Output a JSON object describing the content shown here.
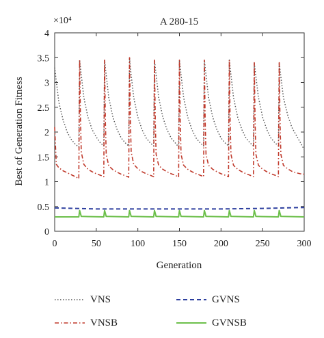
{
  "chart_data": {
    "type": "line",
    "title": "A 280-15",
    "xlabel": "Generation",
    "ylabel": "Best of Generation Fitness",
    "y_multiplier_label": "×10⁴",
    "xlim": [
      0,
      300
    ],
    "ylim": [
      0,
      4
    ],
    "x_ticks": [
      "0",
      "50",
      "100",
      "150",
      "200",
      "250",
      "300"
    ],
    "y_ticks": [
      "0",
      "0.5",
      "1",
      "1.5",
      "2",
      "2.5",
      "3",
      "3.5",
      "4"
    ],
    "grid": false,
    "legend_position": "bottom",
    "series": [
      {
        "name": "VNS",
        "color": "#555555",
        "style": "dotted",
        "x": [
          0,
          5,
          10,
          15,
          20,
          25,
          29,
          30,
          31,
          35,
          40,
          45,
          50,
          55,
          59,
          60,
          61,
          65,
          70,
          75,
          80,
          85,
          89,
          90,
          91,
          95,
          100,
          105,
          110,
          115,
          119,
          120,
          121,
          125,
          130,
          135,
          140,
          145,
          149,
          150,
          151,
          155,
          160,
          165,
          170,
          175,
          179,
          180,
          181,
          185,
          190,
          195,
          200,
          205,
          209,
          210,
          211,
          215,
          220,
          225,
          230,
          235,
          239,
          240,
          241,
          245,
          250,
          255,
          260,
          265,
          269,
          270,
          271,
          275,
          280,
          285,
          290,
          295,
          300
        ],
        "y": [
          3.3,
          2.6,
          2.25,
          2.0,
          1.85,
          1.75,
          1.7,
          3.45,
          3.3,
          2.7,
          2.3,
          2.05,
          1.9,
          1.78,
          1.72,
          3.45,
          3.3,
          2.7,
          2.3,
          2.05,
          1.88,
          1.78,
          1.72,
          3.5,
          3.3,
          2.7,
          2.3,
          2.05,
          1.88,
          1.78,
          1.72,
          3.45,
          3.3,
          2.7,
          2.3,
          2.05,
          1.88,
          1.78,
          1.7,
          3.45,
          3.3,
          2.7,
          2.3,
          2.05,
          1.88,
          1.78,
          1.72,
          3.45,
          3.3,
          2.7,
          2.3,
          2.05,
          1.88,
          1.78,
          1.72,
          3.45,
          3.3,
          2.7,
          2.3,
          2.05,
          1.88,
          1.78,
          1.72,
          3.4,
          3.25,
          2.7,
          2.3,
          2.05,
          1.88,
          1.78,
          1.72,
          3.4,
          3.25,
          2.7,
          2.35,
          2.1,
          1.95,
          1.8,
          1.65
        ]
      },
      {
        "name": "VNSB",
        "color": "#c0392b",
        "style": "dashdot",
        "x": [
          0,
          2,
          5,
          10,
          15,
          20,
          25,
          29,
          30,
          31,
          32,
          35,
          40,
          45,
          50,
          55,
          59,
          60,
          61,
          62,
          65,
          70,
          75,
          80,
          85,
          89,
          90,
          91,
          92,
          95,
          100,
          105,
          110,
          115,
          119,
          120,
          121,
          122,
          125,
          130,
          135,
          140,
          145,
          149,
          150,
          151,
          152,
          155,
          160,
          165,
          170,
          175,
          179,
          180,
          181,
          182,
          185,
          190,
          195,
          200,
          205,
          209,
          210,
          211,
          212,
          215,
          220,
          225,
          230,
          235,
          239,
          240,
          241,
          242,
          245,
          250,
          255,
          260,
          265,
          269,
          270,
          271,
          272,
          275,
          280,
          285,
          290,
          295,
          300
        ],
        "y": [
          2.1,
          1.35,
          1.28,
          1.22,
          1.18,
          1.14,
          1.1,
          1.06,
          3.45,
          2.3,
          1.6,
          1.35,
          1.25,
          1.2,
          1.16,
          1.13,
          1.1,
          3.45,
          2.2,
          1.55,
          1.32,
          1.24,
          1.19,
          1.15,
          1.12,
          1.09,
          3.5,
          2.3,
          1.6,
          1.35,
          1.26,
          1.2,
          1.16,
          1.13,
          1.1,
          3.45,
          2.2,
          1.55,
          1.33,
          1.25,
          1.2,
          1.16,
          1.13,
          1.09,
          3.45,
          2.2,
          1.55,
          1.33,
          1.25,
          1.2,
          1.16,
          1.13,
          1.1,
          3.45,
          2.2,
          1.55,
          1.33,
          1.25,
          1.2,
          1.16,
          1.13,
          1.1,
          3.45,
          2.2,
          1.55,
          1.33,
          1.25,
          1.2,
          1.16,
          1.13,
          1.1,
          3.4,
          2.2,
          1.55,
          1.33,
          1.25,
          1.2,
          1.16,
          1.13,
          1.1,
          3.4,
          2.2,
          1.55,
          1.33,
          1.26,
          1.21,
          1.18,
          1.16,
          1.15
        ]
      },
      {
        "name": "GVNS",
        "color": "#2c3e9e",
        "style": "dashed",
        "x": [
          0,
          50,
          100,
          150,
          200,
          250,
          300
        ],
        "y": [
          0.47,
          0.45,
          0.45,
          0.45,
          0.45,
          0.46,
          0.48
        ]
      },
      {
        "name": "GVNSB",
        "color": "#6cbf4a",
        "style": "solid",
        "x": [
          0,
          29,
          30,
          32,
          59,
          60,
          62,
          89,
          90,
          92,
          119,
          120,
          122,
          149,
          150,
          152,
          179,
          180,
          182,
          209,
          210,
          212,
          239,
          240,
          242,
          269,
          270,
          272,
          300
        ],
        "y": [
          0.29,
          0.29,
          0.42,
          0.3,
          0.29,
          0.42,
          0.3,
          0.29,
          0.42,
          0.3,
          0.29,
          0.42,
          0.3,
          0.29,
          0.42,
          0.3,
          0.29,
          0.42,
          0.3,
          0.29,
          0.42,
          0.3,
          0.29,
          0.42,
          0.3,
          0.29,
          0.42,
          0.3,
          0.29
        ]
      }
    ]
  }
}
